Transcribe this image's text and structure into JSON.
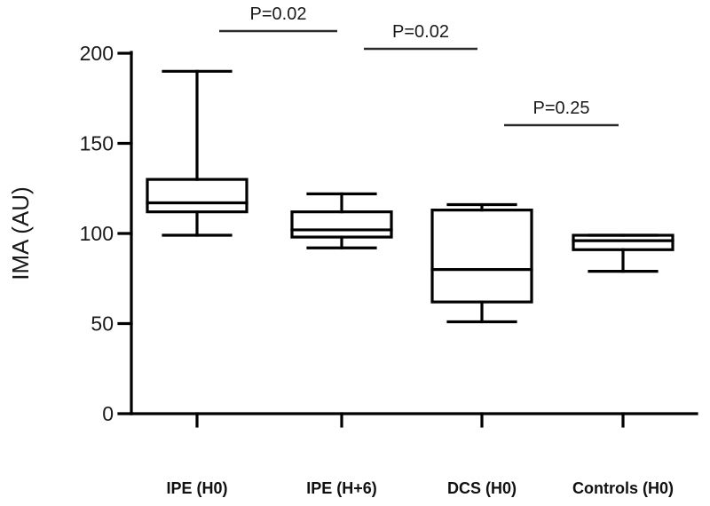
{
  "chart_data": {
    "type": "box",
    "ylabel": "IMA (AU)",
    "xlabel": "",
    "ylim": [
      0,
      200
    ],
    "yticks": [
      0,
      50,
      100,
      150,
      200
    ],
    "categories": [
      "IPE (H0)",
      "IPE (H+6)",
      "DCS (H0)",
      "Controls (H0)"
    ],
    "boxes": [
      {
        "category": "IPE (H0)",
        "min": 99,
        "q1": 112,
        "median": 117,
        "q3": 130,
        "max": 190
      },
      {
        "category": "IPE (H+6)",
        "min": 92,
        "q1": 98,
        "median": 102,
        "q3": 112,
        "max": 122
      },
      {
        "category": "DCS (H0)",
        "min": 51,
        "q1": 62,
        "median": 80,
        "q3": 113,
        "max": 116
      },
      {
        "category": "Controls (H0)",
        "min": 79,
        "q1": 91,
        "median": 96,
        "q3": 99,
        "max": 99
      }
    ],
    "annotations": [
      {
        "text": "P=0.02",
        "between": [
          0,
          1
        ]
      },
      {
        "text": "P=0.02",
        "between": [
          1,
          2
        ]
      },
      {
        "text": "P=0.25",
        "between": [
          2,
          3
        ]
      }
    ],
    "grid": false,
    "legend": "none"
  }
}
